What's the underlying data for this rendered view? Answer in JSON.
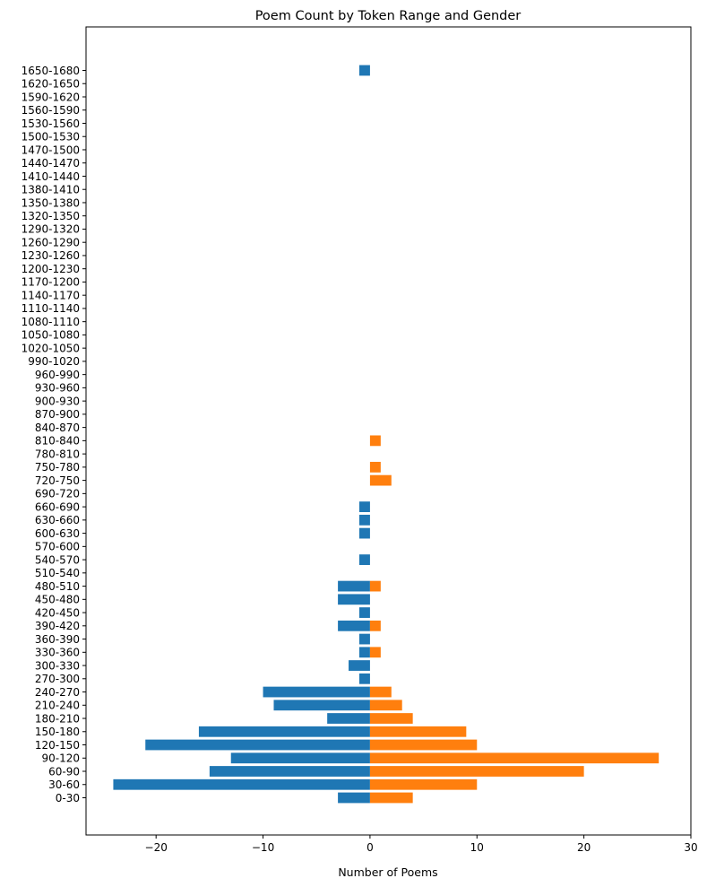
{
  "chart_data": {
    "type": "bar",
    "orientation": "horizontal",
    "title": "Poem Count by Token Range and Gender",
    "xlabel": "Number of Poems",
    "ylabel": "",
    "xlim": [
      -26.55,
      30
    ],
    "xticks": [
      -20,
      -10,
      0,
      10,
      20,
      30
    ],
    "xtick_labels": [
      "−20",
      "−10",
      "0",
      "10",
      "20",
      "30"
    ],
    "grid": false,
    "legend": "none",
    "categories": [
      "0-30",
      "30-60",
      "60-90",
      "90-120",
      "120-150",
      "150-180",
      "180-210",
      "210-240",
      "240-270",
      "270-300",
      "300-330",
      "330-360",
      "360-390",
      "390-420",
      "420-450",
      "450-480",
      "480-510",
      "510-540",
      "540-570",
      "570-600",
      "600-630",
      "630-660",
      "660-690",
      "690-720",
      "720-750",
      "750-780",
      "780-810",
      "810-840",
      "840-870",
      "870-900",
      "900-930",
      "930-960",
      "960-990",
      "990-1020",
      "1020-1050",
      "1050-1080",
      "1080-1110",
      "1110-1140",
      "1140-1170",
      "1170-1200",
      "1200-1230",
      "1230-1260",
      "1260-1290",
      "1290-1320",
      "1320-1350",
      "1350-1380",
      "1380-1410",
      "1410-1440",
      "1440-1470",
      "1470-1500",
      "1500-1530",
      "1530-1560",
      "1560-1590",
      "1590-1620",
      "1620-1650",
      "1650-1680"
    ],
    "series": [
      {
        "color": "#1f77b4",
        "values": [
          -3,
          -24,
          -15,
          -13,
          -21,
          -16,
          -4,
          -9,
          -10,
          -1,
          -2,
          -1,
          -1,
          -3,
          -1,
          -3,
          -3,
          0,
          -1,
          0,
          -1,
          -1,
          -1,
          0,
          0,
          0,
          0,
          0,
          0,
          0,
          0,
          0,
          0,
          0,
          0,
          0,
          0,
          0,
          0,
          0,
          0,
          0,
          0,
          0,
          0,
          0,
          0,
          0,
          0,
          0,
          0,
          0,
          0,
          0,
          0,
          -1
        ]
      },
      {
        "color": "#ff7f0e",
        "values": [
          4,
          10,
          20,
          27,
          10,
          9,
          4,
          3,
          2,
          0,
          0,
          1,
          0,
          1,
          0,
          0,
          1,
          0,
          0,
          0,
          0,
          0,
          0,
          0,
          2,
          1,
          0,
          1,
          0,
          0,
          0,
          0,
          0,
          0,
          0,
          0,
          0,
          0,
          0,
          0,
          0,
          0,
          0,
          0,
          0,
          0,
          0,
          0,
          0,
          0,
          0,
          0,
          0,
          0,
          0,
          0
        ]
      }
    ]
  }
}
